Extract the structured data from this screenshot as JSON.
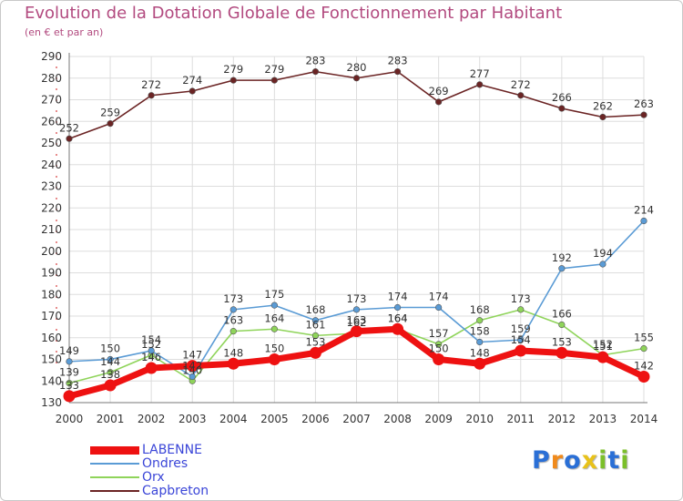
{
  "title": "Evolution de la Dotation Globale de Fonctionnement par Habitant",
  "subtitle": "(en € et par an)",
  "brand": {
    "letters": [
      "P",
      "r",
      "o",
      "x",
      "i",
      "t",
      "i"
    ],
    "colors": [
      "#2a6fd6",
      "#f08a1c",
      "#2a6fd6",
      "#e8c21a",
      "#7bbf2a",
      "#2a6fd6",
      "#7bbf2a"
    ]
  },
  "chart_data": {
    "type": "line",
    "title": "Evolution de la Dotation Globale de Fonctionnement par Habitant",
    "subtitle": "(en € et par an)",
    "xlabel": "",
    "ylabel": "",
    "ylim": [
      130,
      290
    ],
    "yticks": [
      "130",
      "140",
      "150",
      "160",
      "170",
      "180",
      "190",
      "200",
      "210",
      "220",
      "230",
      "240",
      "250",
      "260",
      "270",
      "280",
      "290"
    ],
    "x": [
      "2000",
      "2001",
      "2002",
      "2003",
      "2004",
      "2005",
      "2006",
      "2007",
      "2008",
      "2009",
      "2010",
      "2011",
      "2012",
      "2013",
      "2014"
    ],
    "grid": true,
    "legend_position": "bottom-left",
    "series": [
      {
        "name": "LABENNE",
        "color": "#ee1111",
        "values": [
          133,
          138,
          146,
          147,
          148,
          150,
          153,
          163,
          164,
          150,
          148,
          154,
          153,
          151,
          142
        ],
        "labels": [
          "133",
          "138",
          "146",
          "147",
          "148",
          "150",
          "153",
          "163",
          "164",
          "150",
          "148",
          "154",
          "153",
          "151",
          "142"
        ]
      },
      {
        "name": "Ondres",
        "color": "#5a9bd5",
        "values": [
          149,
          150,
          154,
          142,
          173,
          175,
          168,
          173,
          174,
          174,
          158,
          159,
          192,
          194,
          214
        ],
        "labels": [
          "149",
          "150",
          "154",
          "142",
          "173",
          "175",
          "168",
          "173",
          "174",
          "174",
          "158",
          "159",
          "192",
          "194",
          "214"
        ]
      },
      {
        "name": "Orx",
        "color": "#8fd45a",
        "values": [
          139,
          144,
          152,
          140,
          163,
          164,
          161,
          162,
          164,
          157,
          168,
          173,
          166,
          152,
          155
        ],
        "labels": [
          "139",
          "144",
          "152",
          "140",
          "163",
          "164",
          "161",
          "162",
          "164",
          "157",
          "168",
          "173",
          "166",
          "152",
          "155"
        ]
      },
      {
        "name": "Capbreton",
        "color": "#6b2424",
        "values": [
          252,
          259,
          272,
          274,
          279,
          279,
          283,
          280,
          283,
          269,
          277,
          272,
          266,
          262,
          263
        ],
        "labels": [
          "252",
          "259",
          "272",
          "274",
          "279",
          "279",
          "283",
          "280",
          "283",
          "269",
          "277",
          "272",
          "266",
          "262",
          "263"
        ]
      }
    ]
  }
}
